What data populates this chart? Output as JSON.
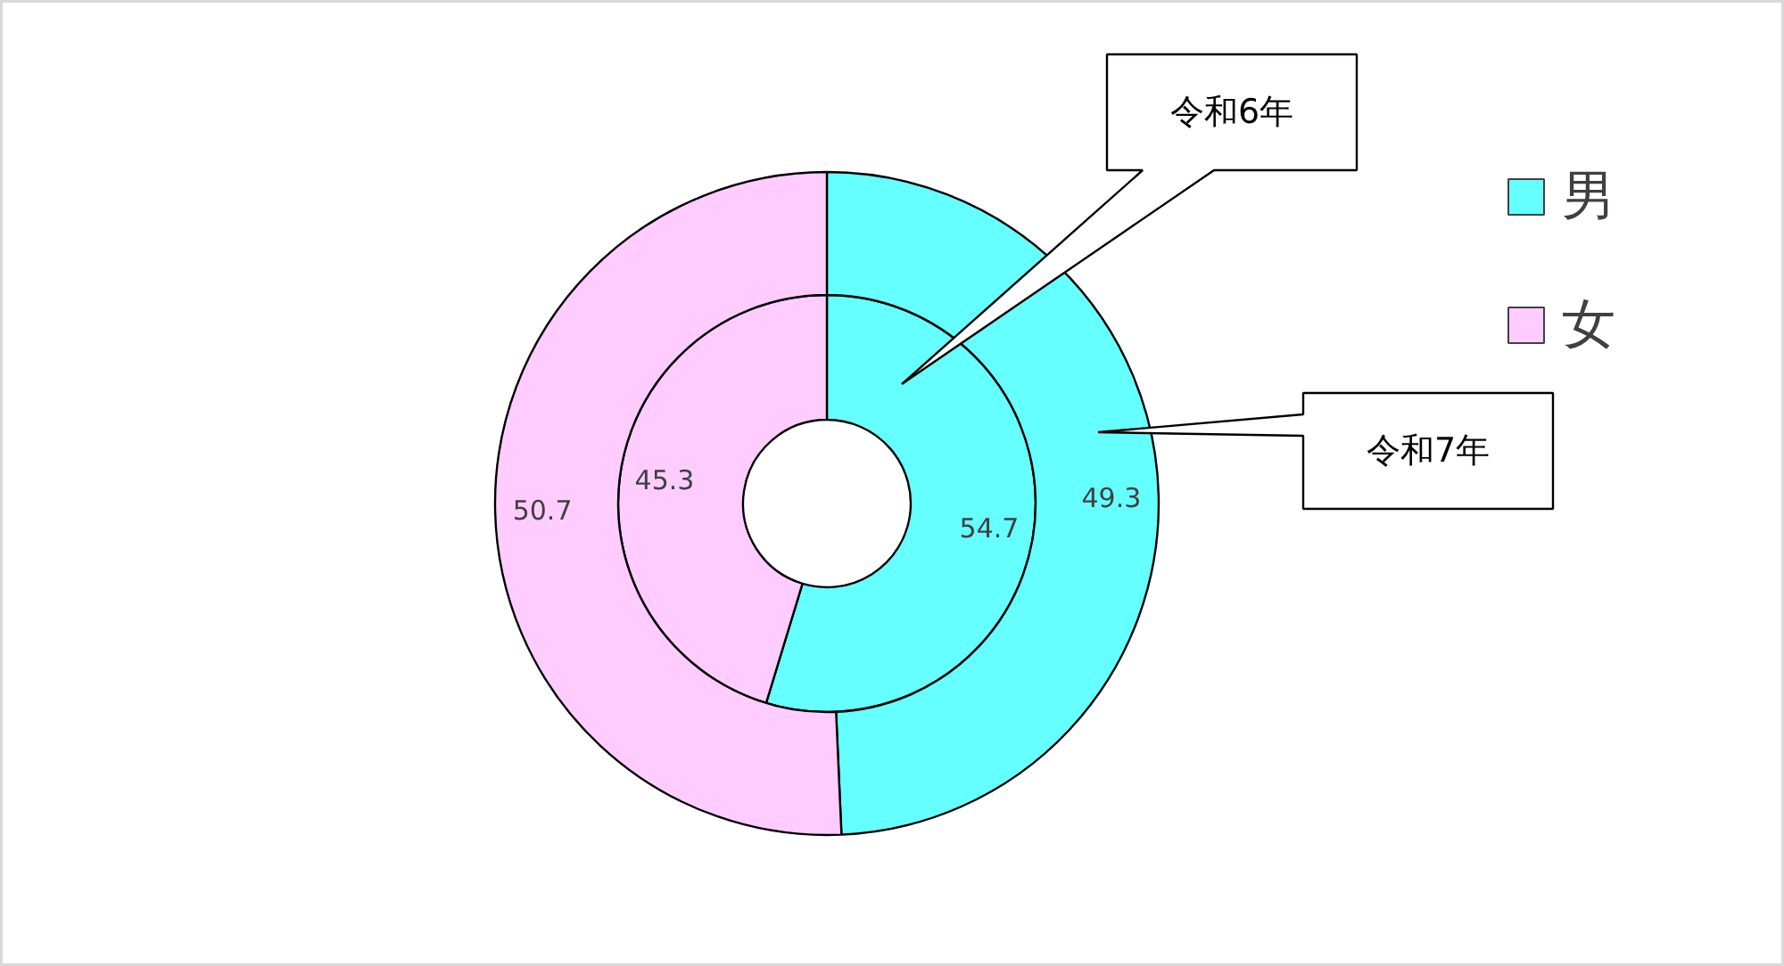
{
  "chart_data": {
    "type": "donut",
    "categories": [
      "男",
      "女"
    ],
    "colors": [
      "#66ffff",
      "#ffccff"
    ],
    "series": [
      {
        "name": "令和6年",
        "values": [
          54.7,
          45.3
        ]
      },
      {
        "name": "令和7年",
        "values": [
          49.3,
          50.7
        ]
      }
    ],
    "data_labels": true,
    "legend": "top right"
  }
}
